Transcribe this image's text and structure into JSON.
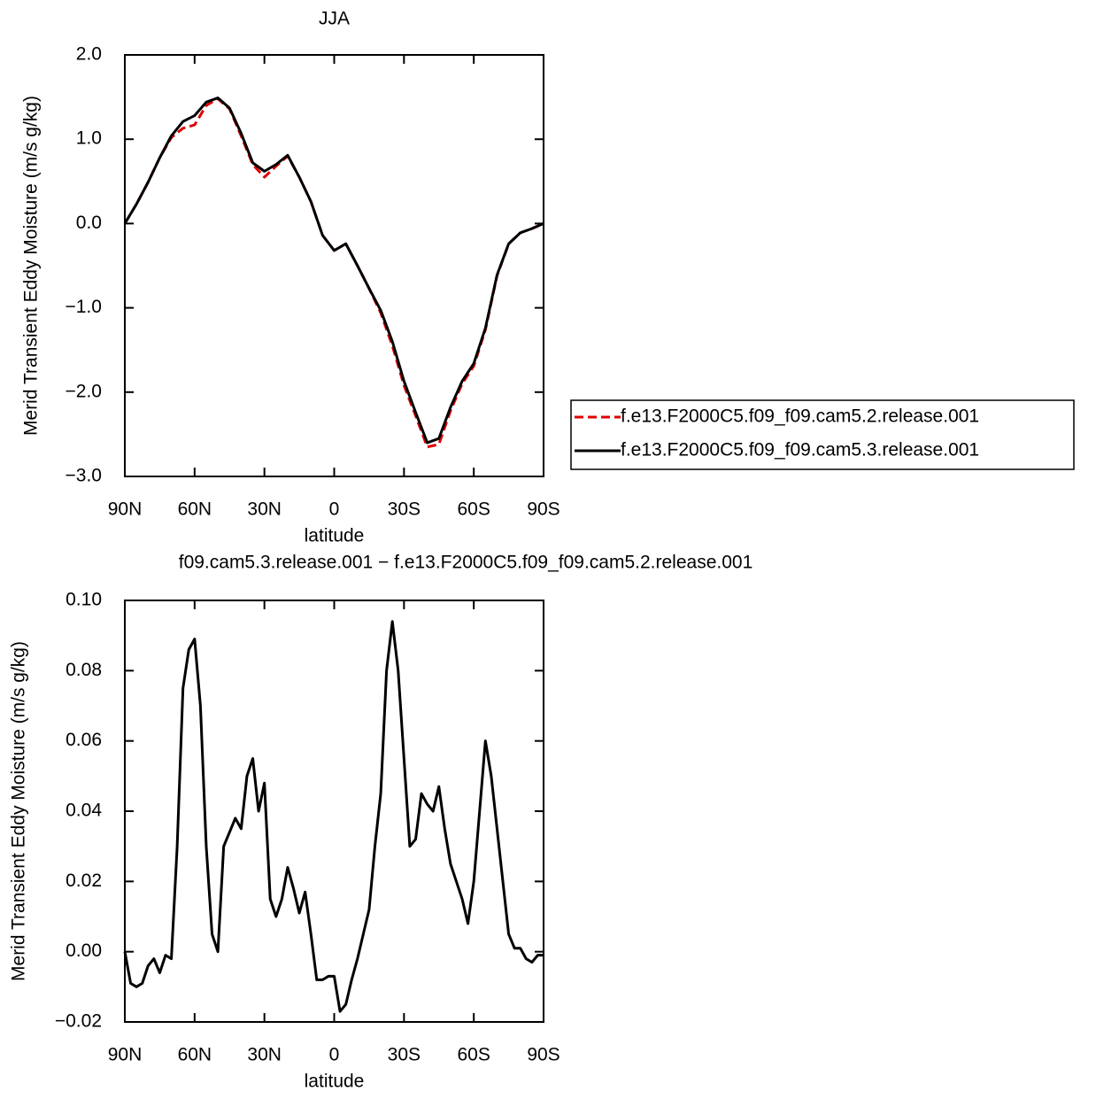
{
  "chart_data": [
    {
      "type": "line",
      "title": "JJA",
      "xlabel": "latitude",
      "ylabel": "Merid Transient Eddy Moisture (m/s g/kg)",
      "x": [
        90,
        85,
        80,
        75,
        70,
        65,
        60,
        55,
        50,
        45,
        40,
        35,
        30,
        25,
        20,
        15,
        10,
        5,
        0,
        -5,
        -10,
        -15,
        -20,
        -25,
        -30,
        -35,
        -40,
        -45,
        -50,
        -55,
        -60,
        -65,
        -70,
        -75,
        -80,
        -85,
        -90
      ],
      "series": [
        {
          "name": "f.e13.F2000C5.f09_f09.cam5.2.release.001",
          "color": "#e00000",
          "style": "dashed",
          "values": [
            0.0,
            0.23,
            0.49,
            0.78,
            1.02,
            1.13,
            1.17,
            1.4,
            1.48,
            1.36,
            1.04,
            0.7,
            0.55,
            0.68,
            0.8,
            0.55,
            0.26,
            -0.14,
            -0.32,
            -0.24,
            -0.5,
            -0.77,
            -1.06,
            -1.45,
            -1.92,
            -2.28,
            -2.65,
            -2.62,
            -2.22,
            -1.9,
            -1.69,
            -1.26,
            -0.62,
            -0.24,
            -0.11,
            -0.06,
            0.0
          ]
        },
        {
          "name": "f.e13.F2000C5.f09_f09.cam5.3.release.001",
          "color": "#000000",
          "style": "solid",
          "values": [
            0.0,
            0.23,
            0.49,
            0.78,
            1.04,
            1.21,
            1.28,
            1.44,
            1.49,
            1.37,
            1.07,
            0.72,
            0.62,
            0.7,
            0.81,
            0.55,
            0.26,
            -0.14,
            -0.32,
            -0.24,
            -0.5,
            -0.77,
            -1.03,
            -1.4,
            -1.87,
            -2.24,
            -2.6,
            -2.55,
            -2.18,
            -1.87,
            -1.66,
            -1.24,
            -0.61,
            -0.24,
            -0.11,
            -0.06,
            0.0
          ]
        }
      ],
      "xlim": [
        90,
        -90
      ],
      "xticks": [
        {
          "value": 90,
          "label": "90N"
        },
        {
          "value": 60,
          "label": "60N"
        },
        {
          "value": 30,
          "label": "30N"
        },
        0,
        {
          "value": -30,
          "label": "30S"
        },
        {
          "value": -60,
          "label": "60S"
        },
        {
          "value": -90,
          "label": "90S"
        }
      ],
      "ylim": [
        -3,
        2
      ],
      "yticks": [
        {
          "value": -3,
          "label": "−3.0"
        },
        {
          "value": -2,
          "label": "−2.0"
        },
        {
          "value": -1,
          "label": "−1.0"
        },
        {
          "value": 0,
          "label": "0.0"
        },
        {
          "value": 1,
          "label": "1.0"
        },
        {
          "value": 2,
          "label": "2.0"
        }
      ],
      "legend": "right"
    },
    {
      "type": "line",
      "title": "f09.cam5.3.release.001 − f.e13.F2000C5.f09_f09.cam5.2.release.001",
      "xlabel": "latitude",
      "ylabel": "Merid Transient Eddy Moisture (m/s g/kg)",
      "x": [
        90,
        87.5,
        85,
        82.5,
        80,
        77.5,
        75,
        72.5,
        70,
        67.5,
        65,
        62.5,
        60,
        57.5,
        55,
        52.5,
        50,
        47.5,
        45,
        42.5,
        40,
        37.5,
        35,
        32.5,
        30,
        27.5,
        25,
        22.5,
        20,
        17.5,
        15,
        12.5,
        10,
        7.5,
        5,
        2.5,
        0,
        -2.5,
        -5,
        -7.5,
        -10,
        -12.5,
        -15,
        -17.5,
        -20,
        -22.5,
        -25,
        -27.5,
        -30,
        -32.5,
        -35,
        -37.5,
        -40,
        -42.5,
        -45,
        -47.5,
        -50,
        -52.5,
        -55,
        -57.5,
        -60,
        -62.5,
        -65,
        -67.5,
        -70,
        -72.5,
        -75,
        -77.5,
        -80,
        -82.5,
        -85,
        -87.5,
        -90
      ],
      "series": [
        {
          "color": "#000000",
          "style": "solid",
          "values": [
            0.0,
            -0.009,
            -0.01,
            -0.009,
            -0.004,
            -0.002,
            -0.006,
            -0.001,
            -0.002,
            0.03,
            0.075,
            0.086,
            0.089,
            0.07,
            0.03,
            0.005,
            0.0,
            0.03,
            0.034,
            0.038,
            0.035,
            0.05,
            0.055,
            0.04,
            0.048,
            0.015,
            0.01,
            0.015,
            0.024,
            0.018,
            0.011,
            0.017,
            0.005,
            -0.008,
            -0.008,
            -0.007,
            -0.007,
            -0.017,
            -0.015,
            -0.008,
            -0.002,
            0.005,
            0.012,
            0.03,
            0.045,
            0.08,
            0.094,
            0.08,
            0.055,
            0.03,
            0.032,
            0.045,
            0.042,
            0.04,
            0.047,
            0.035,
            0.025,
            0.02,
            0.015,
            0.008,
            0.02,
            0.04,
            0.06,
            0.05,
            0.035,
            0.02,
            0.005,
            0.001,
            0.001,
            -0.002,
            -0.003,
            -0.001,
            -0.001
          ]
        }
      ],
      "xlim": [
        90,
        -90
      ],
      "xticks": [
        {
          "value": 90,
          "label": "90N"
        },
        {
          "value": 60,
          "label": "60N"
        },
        {
          "value": 30,
          "label": "30N"
        },
        0,
        {
          "value": -30,
          "label": "30S"
        },
        {
          "value": -60,
          "label": "60S"
        },
        {
          "value": -90,
          "label": "90S"
        }
      ],
      "ylim": [
        -0.02,
        0.1
      ],
      "yticks": [
        {
          "value": -0.02,
          "label": "−0.02"
        },
        {
          "value": 0,
          "label": "0.00"
        },
        0.02,
        0.04,
        0.06,
        0.08,
        {
          "value": 0.1,
          "label": "0.10"
        }
      ]
    }
  ]
}
